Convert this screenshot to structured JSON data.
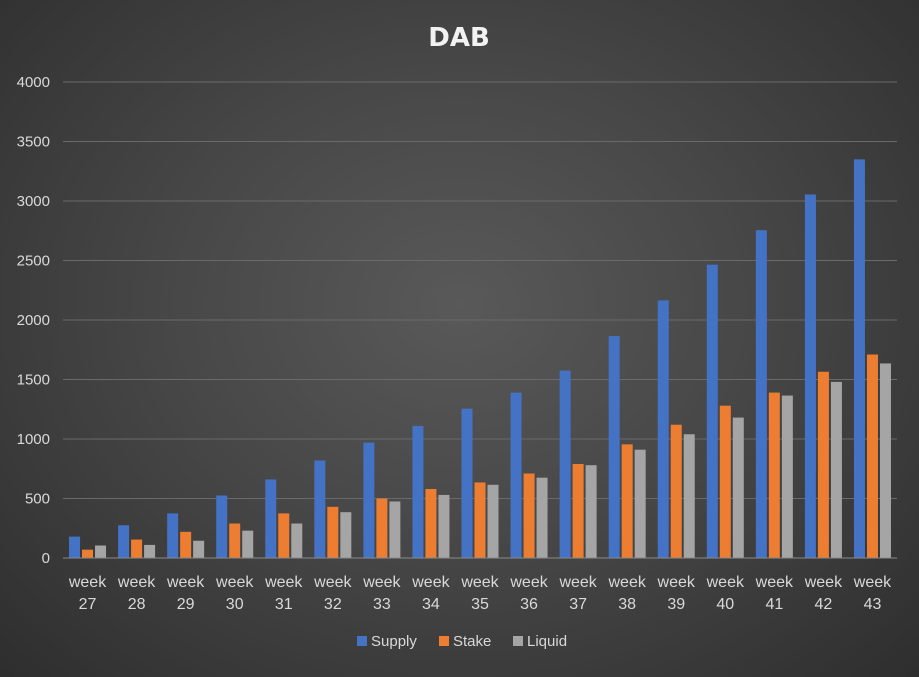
{
  "chart_data": {
    "type": "bar",
    "title": "DAB",
    "xlabel": "",
    "ylabel": "",
    "ylim": [
      0,
      4000
    ],
    "yticks": [
      "0",
      "500",
      "1000",
      "1500",
      "2000",
      "2500",
      "3000",
      "3500",
      "4000"
    ],
    "grid": true,
    "legend_position": "bottom",
    "categories": [
      [
        "week",
        "27"
      ],
      [
        "week",
        "28"
      ],
      [
        "week",
        "29"
      ],
      [
        "week",
        "30"
      ],
      [
        "week",
        "31"
      ],
      [
        "week",
        "32"
      ],
      [
        "week",
        "33"
      ],
      [
        "week",
        "34"
      ],
      [
        "week",
        "35"
      ],
      [
        "week",
        "36"
      ],
      [
        "week",
        "37"
      ],
      [
        "week",
        "38"
      ],
      [
        "week",
        "39"
      ],
      [
        "week",
        "40"
      ],
      [
        "week",
        "41"
      ],
      [
        "week",
        "42"
      ],
      [
        "week",
        "43"
      ]
    ],
    "series": [
      {
        "name": "Supply",
        "color": "#4472c4",
        "values": [
          180,
          275,
          375,
          525,
          660,
          820,
          970,
          1110,
          1255,
          1390,
          1575,
          1865,
          2165,
          2465,
          2755,
          3055,
          3350
        ]
      },
      {
        "name": "Stake",
        "color": "#ed7d31",
        "values": [
          70,
          155,
          220,
          290,
          375,
          430,
          500,
          580,
          635,
          710,
          790,
          955,
          1120,
          1280,
          1390,
          1565,
          1710
        ]
      },
      {
        "name": "Liquid",
        "color": "#a5a5a5",
        "values": [
          105,
          110,
          145,
          230,
          290,
          385,
          475,
          530,
          615,
          675,
          780,
          910,
          1040,
          1180,
          1365,
          1480,
          1635
        ]
      }
    ]
  }
}
